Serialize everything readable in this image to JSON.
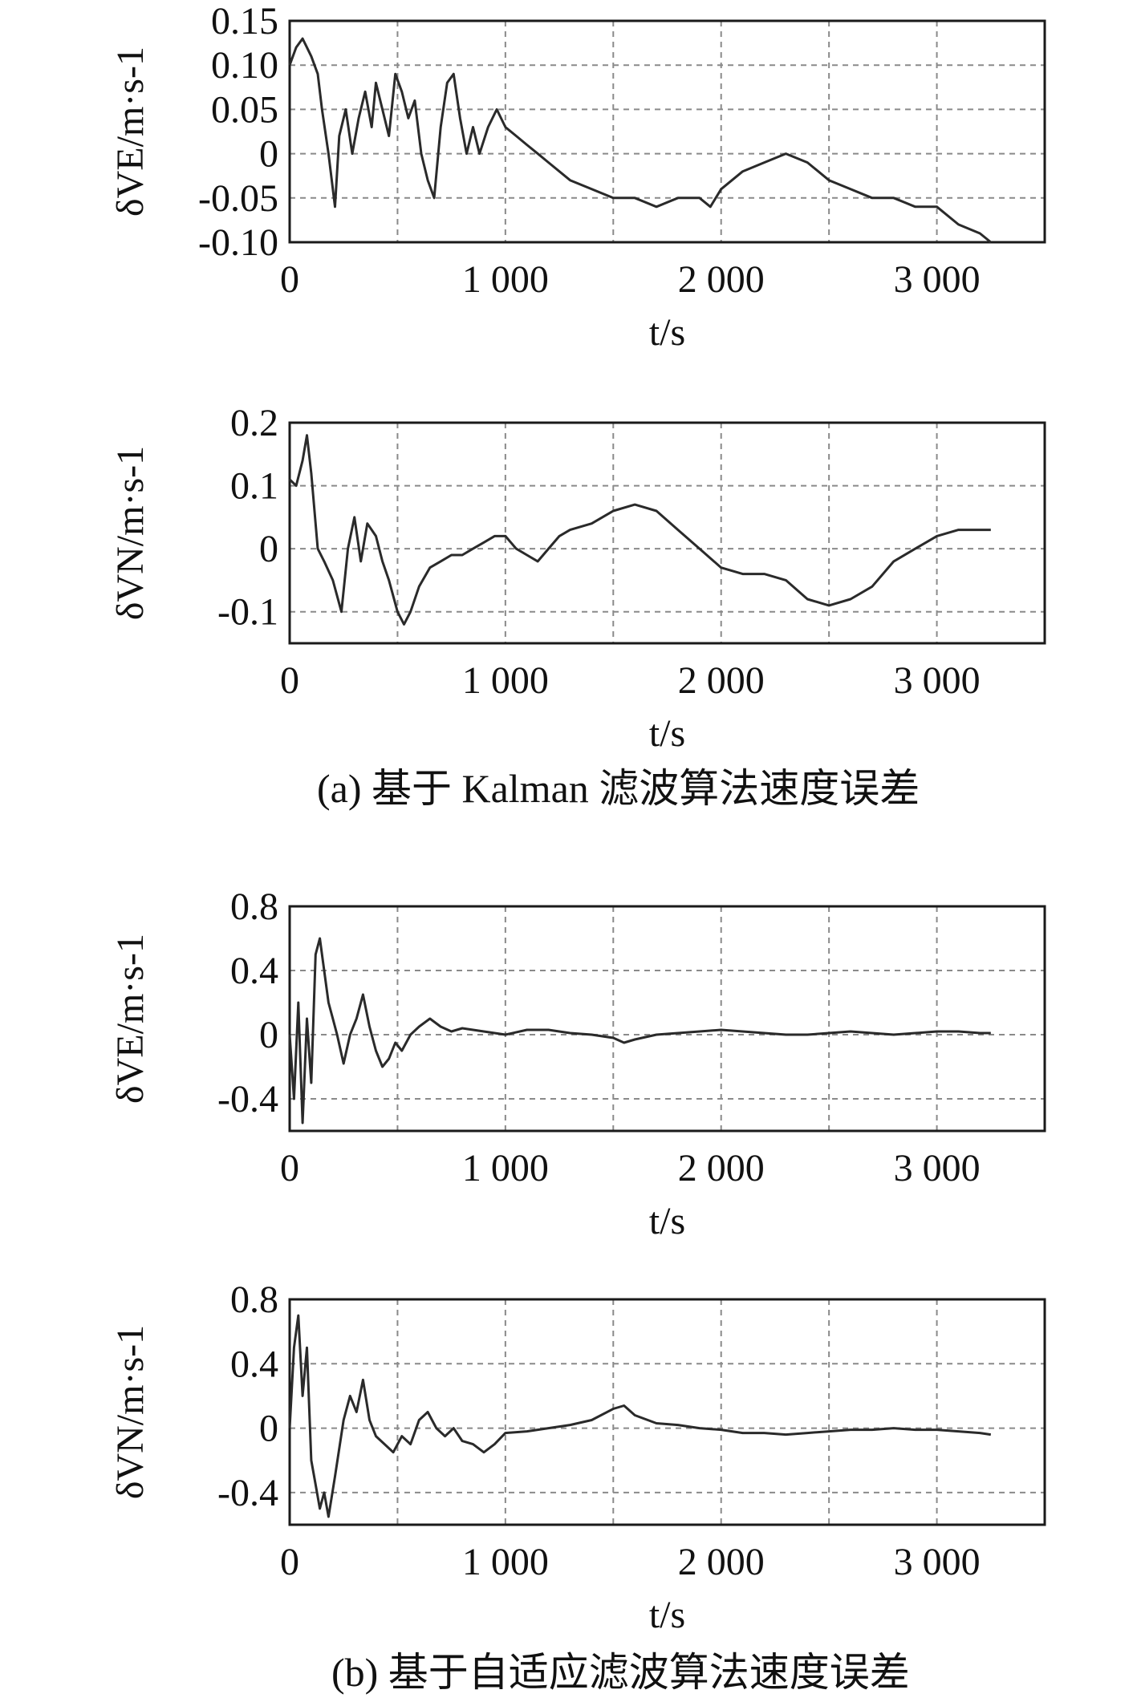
{
  "figure": {
    "caption_a": "(a) 基于 Kalman 滤波算法速度误差",
    "caption_b": "(b) 基于自适应滤波算法速度误差"
  },
  "chart_data": [
    {
      "type": "line",
      "id": "a-ve",
      "xlabel": "t/s",
      "ylabel": "δVE/m·s-1",
      "xlim": [
        0,
        3500
      ],
      "ylim": [
        -0.1,
        0.15
      ],
      "xticks": [
        0,
        1000,
        2000,
        3000
      ],
      "xtick_labels": [
        "0",
        "1 000",
        "2 000",
        "3 000"
      ],
      "yticks": [
        -0.1,
        -0.05,
        0,
        0.05,
        0.1,
        0.15
      ],
      "ytick_labels": [
        "-0.10",
        "-0.05",
        "0",
        "0.05",
        "0.10",
        "0.15"
      ],
      "grid": true,
      "series": [
        {
          "x": [
            0,
            30,
            60,
            100,
            130,
            150,
            180,
            210,
            230,
            260,
            290,
            320,
            350,
            380,
            400,
            430,
            460,
            490,
            520,
            550,
            580,
            610,
            640,
            670,
            700,
            730,
            760,
            790,
            820,
            850,
            880,
            920,
            960,
            1000,
            1050,
            1100,
            1150,
            1200,
            1300,
            1400,
            1500,
            1600,
            1700,
            1800,
            1900,
            1950,
            2000,
            2100,
            2200,
            2300,
            2400,
            2500,
            2600,
            2700,
            2800,
            2900,
            3000,
            3100,
            3200,
            3250
          ],
          "y": [
            0.1,
            0.12,
            0.13,
            0.11,
            0.09,
            0.05,
            0.0,
            -0.06,
            0.02,
            0.05,
            0.0,
            0.04,
            0.07,
            0.03,
            0.08,
            0.05,
            0.02,
            0.09,
            0.07,
            0.04,
            0.06,
            0.0,
            -0.03,
            -0.05,
            0.03,
            0.08,
            0.09,
            0.04,
            0.0,
            0.03,
            0.0,
            0.03,
            0.05,
            0.03,
            0.02,
            0.01,
            0.0,
            -0.01,
            -0.03,
            -0.04,
            -0.05,
            -0.05,
            -0.06,
            -0.05,
            -0.05,
            -0.06,
            -0.04,
            -0.02,
            -0.01,
            0.0,
            -0.01,
            -0.03,
            -0.04,
            -0.05,
            -0.05,
            -0.06,
            -0.06,
            -0.08,
            -0.09,
            -0.1
          ]
        }
      ]
    },
    {
      "type": "line",
      "id": "a-vn",
      "xlabel": "t/s",
      "ylabel": "δVN/m·s-1",
      "xlim": [
        0,
        3500
      ],
      "ylim": [
        -0.15,
        0.2
      ],
      "xticks": [
        0,
        1000,
        2000,
        3000
      ],
      "xtick_labels": [
        "0",
        "1 000",
        "2 000",
        "3 000"
      ],
      "yticks": [
        -0.1,
        0,
        0.1,
        0.2
      ],
      "ytick_labels": [
        "-0.1",
        "0",
        "0.1",
        "0.2"
      ],
      "grid": true,
      "series": [
        {
          "x": [
            0,
            30,
            60,
            80,
            100,
            130,
            160,
            200,
            240,
            270,
            300,
            330,
            360,
            400,
            430,
            460,
            500,
            530,
            560,
            600,
            650,
            700,
            750,
            800,
            850,
            900,
            950,
            1000,
            1050,
            1100,
            1150,
            1200,
            1250,
            1300,
            1400,
            1500,
            1600,
            1700,
            1800,
            1900,
            2000,
            2100,
            2200,
            2300,
            2400,
            2500,
            2600,
            2700,
            2800,
            2900,
            3000,
            3100,
            3200,
            3250
          ],
          "y": [
            0.11,
            0.1,
            0.14,
            0.18,
            0.12,
            0.0,
            -0.02,
            -0.05,
            -0.1,
            0.0,
            0.05,
            -0.02,
            0.04,
            0.02,
            -0.02,
            -0.05,
            -0.1,
            -0.12,
            -0.1,
            -0.06,
            -0.03,
            -0.02,
            -0.01,
            -0.01,
            0.0,
            0.01,
            0.02,
            0.02,
            0.0,
            -0.01,
            -0.02,
            0.0,
            0.02,
            0.03,
            0.04,
            0.06,
            0.07,
            0.06,
            0.03,
            0.0,
            -0.03,
            -0.04,
            -0.04,
            -0.05,
            -0.08,
            -0.09,
            -0.08,
            -0.06,
            -0.02,
            0.0,
            0.02,
            0.03,
            0.03,
            0.03
          ]
        }
      ]
    },
    {
      "type": "line",
      "id": "b-ve",
      "xlabel": "t/s",
      "ylabel": "δVE/m·s-1",
      "xlim": [
        0,
        3500
      ],
      "ylim": [
        -0.6,
        0.8
      ],
      "xticks": [
        0,
        1000,
        2000,
        3000
      ],
      "xtick_labels": [
        "0",
        "1 000",
        "2 000",
        "3 000"
      ],
      "yticks": [
        -0.4,
        0,
        0.4,
        0.8
      ],
      "ytick_labels": [
        "-0.4",
        "0",
        "0.4",
        "0.8"
      ],
      "grid": true,
      "series": [
        {
          "x": [
            0,
            20,
            40,
            60,
            80,
            100,
            120,
            140,
            160,
            180,
            200,
            220,
            250,
            280,
            310,
            340,
            370,
            400,
            430,
            460,
            490,
            520,
            560,
            600,
            650,
            700,
            750,
            800,
            900,
            1000,
            1100,
            1200,
            1300,
            1400,
            1500,
            1550,
            1600,
            1700,
            1800,
            1900,
            2000,
            2100,
            2200,
            2300,
            2400,
            2500,
            2600,
            2700,
            2800,
            2900,
            3000,
            3100,
            3200,
            3250
          ],
          "y": [
            0.0,
            -0.4,
            0.2,
            -0.55,
            0.1,
            -0.3,
            0.5,
            0.6,
            0.4,
            0.2,
            0.1,
            0.0,
            -0.18,
            0.0,
            0.1,
            0.25,
            0.05,
            -0.1,
            -0.2,
            -0.15,
            -0.05,
            -0.1,
            0.0,
            0.05,
            0.1,
            0.05,
            0.02,
            0.04,
            0.02,
            0.0,
            0.03,
            0.03,
            0.01,
            0.0,
            -0.02,
            -0.05,
            -0.03,
            0.0,
            0.01,
            0.02,
            0.03,
            0.02,
            0.01,
            0.0,
            0.0,
            0.01,
            0.02,
            0.01,
            0.0,
            0.01,
            0.02,
            0.02,
            0.01,
            0.01
          ]
        }
      ]
    },
    {
      "type": "line",
      "id": "b-vn",
      "xlabel": "t/s",
      "ylabel": "δVN/m·s-1",
      "xlim": [
        0,
        3500
      ],
      "ylim": [
        -0.6,
        0.8
      ],
      "xticks": [
        0,
        1000,
        2000,
        3000
      ],
      "xtick_labels": [
        "0",
        "1 000",
        "2 000",
        "3 000"
      ],
      "yticks": [
        -0.4,
        0,
        0.4,
        0.8
      ],
      "ytick_labels": [
        "-0.4",
        "0",
        "0.4",
        "0.8"
      ],
      "grid": true,
      "series": [
        {
          "x": [
            0,
            20,
            40,
            60,
            80,
            100,
            120,
            140,
            160,
            180,
            210,
            250,
            280,
            310,
            340,
            370,
            400,
            440,
            480,
            520,
            560,
            600,
            640,
            680,
            720,
            760,
            800,
            850,
            900,
            950,
            1000,
            1100,
            1200,
            1300,
            1400,
            1500,
            1550,
            1600,
            1700,
            1800,
            1900,
            2000,
            2100,
            2200,
            2300,
            2400,
            2500,
            2600,
            2700,
            2800,
            2900,
            3000,
            3100,
            3200,
            3250
          ],
          "y": [
            0.0,
            0.5,
            0.7,
            0.2,
            0.5,
            -0.2,
            -0.35,
            -0.5,
            -0.4,
            -0.55,
            -0.3,
            0.05,
            0.2,
            0.1,
            0.3,
            0.05,
            -0.05,
            -0.1,
            -0.15,
            -0.05,
            -0.1,
            0.05,
            0.1,
            0.0,
            -0.05,
            0.0,
            -0.08,
            -0.1,
            -0.15,
            -0.1,
            -0.03,
            -0.02,
            0.0,
            0.02,
            0.05,
            0.12,
            0.14,
            0.08,
            0.03,
            0.02,
            0.0,
            -0.01,
            -0.03,
            -0.03,
            -0.04,
            -0.03,
            -0.02,
            -0.01,
            -0.01,
            0.0,
            -0.01,
            -0.01,
            -0.02,
            -0.03,
            -0.04
          ]
        }
      ]
    }
  ]
}
